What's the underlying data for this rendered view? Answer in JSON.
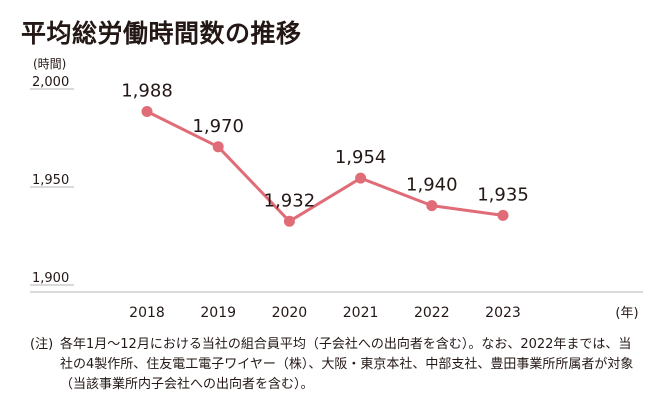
{
  "title": "平均総労働時間数の推移",
  "note": {
    "prefix": "(注)",
    "text": "各年1月～12月における当社の組合員平均（子会社への出向者を含む）。なお、2022年までは、当社の4製作所、住友電工電子ワイヤー（株）、大阪・東京本社、中部支社、豊田事業所所属者が対象（当該事業所内子会社への出向者を含む）。"
  },
  "colors": {
    "line": "#e06c78",
    "text": "#231815",
    "axis": "#b5b5b5"
  },
  "chart_data": {
    "type": "line",
    "x": [
      "2018",
      "2019",
      "2020",
      "2021",
      "2022",
      "2023"
    ],
    "values": [
      1988,
      1970,
      1932,
      1954,
      1940,
      1935
    ],
    "data_labels": [
      "1,988",
      "1,970",
      "1,932",
      "1,954",
      "1,940",
      "1,935"
    ],
    "ylabel": "(時間)",
    "xlabel": "(年)",
    "y_ticks": [
      {
        "value": 2000,
        "label": "2,000"
      },
      {
        "value": 1950,
        "label": "1,950"
      },
      {
        "value": 1900,
        "label": "1,900"
      }
    ],
    "ylim": [
      1900,
      2000
    ],
    "grid": false,
    "legend": "none"
  }
}
